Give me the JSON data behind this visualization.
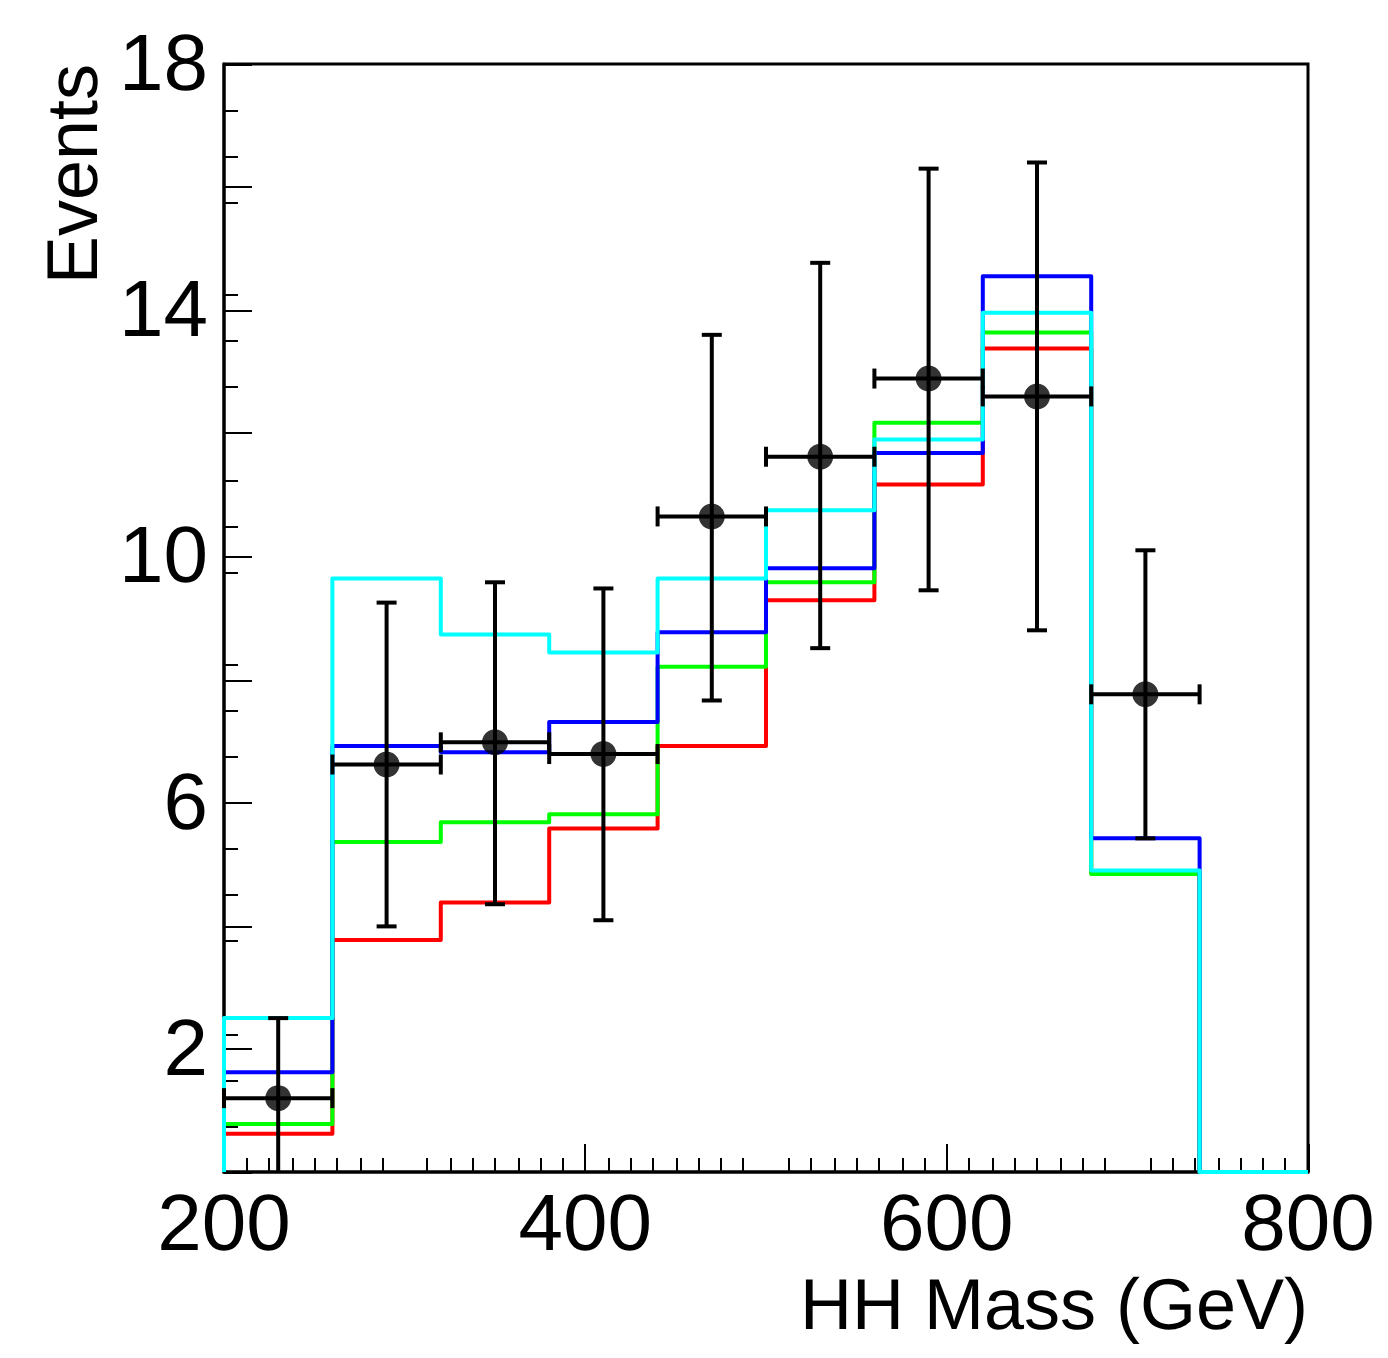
{
  "chart_data": {
    "type": "histogram",
    "xlabel": "HH Mass (GeV)",
    "ylabel": "Events",
    "bins": [
      200,
      260,
      320,
      380,
      440,
      500,
      560,
      620,
      680,
      740,
      800
    ],
    "series": [
      {
        "color": "#ff0000",
        "values": [
          0.62,
          3.77,
          4.38,
          5.58,
          6.92,
          9.29,
          11.17,
          13.38,
          4.87,
          0
        ]
      },
      {
        "color": "#00ff00",
        "values": [
          0.78,
          5.36,
          5.68,
          5.81,
          8.21,
          9.58,
          12.17,
          13.64,
          4.84,
          0
        ]
      },
      {
        "color": "#0000ff",
        "values": [
          1.62,
          6.92,
          6.82,
          7.31,
          8.77,
          9.81,
          11.68,
          14.55,
          5.42,
          0
        ]
      },
      {
        "color": "#00ffff",
        "values": [
          2.5,
          9.64,
          8.73,
          8.44,
          9.64,
          10.75,
          11.9,
          13.96,
          4.9,
          0
        ]
      },
      {
        "type": "scatter",
        "color": "#000000",
        "marker": "circle",
        "x": [
          230,
          290,
          350,
          410,
          470,
          530,
          590,
          650,
          710
        ],
        "values": [
          1.2,
          6.62,
          6.98,
          6.79,
          10.65,
          11.62,
          12.89,
          12.6,
          7.76
        ],
        "errors": [
          [
            0,
            2.5
          ],
          [
            3.99,
            9.25
          ],
          [
            4.35,
            9.58
          ],
          [
            4.09,
            9.48
          ],
          [
            7.66,
            13.6
          ],
          [
            8.51,
            14.77
          ],
          [
            9.45,
            16.3
          ],
          [
            8.8,
            16.4
          ],
          [
            5.42,
            10.1
          ]
        ],
        "xerrors": [
          30,
          30,
          30,
          30,
          30,
          30,
          30,
          30,
          30
        ]
      }
    ],
    "xlim": [
      200,
      800
    ],
    "xticks": [
      200,
      400,
      600,
      800
    ],
    "ylim": [
      0,
      18
    ],
    "yticks": [
      {
        "value": 0,
        "label": null
      },
      2,
      {
        "value": 4,
        "label": null
      },
      6,
      {
        "value": 8,
        "label": null
      },
      10,
      {
        "value": 12,
        "label": null
      },
      14,
      {
        "value": 16,
        "label": null
      },
      18
    ],
    "grid": false
  }
}
